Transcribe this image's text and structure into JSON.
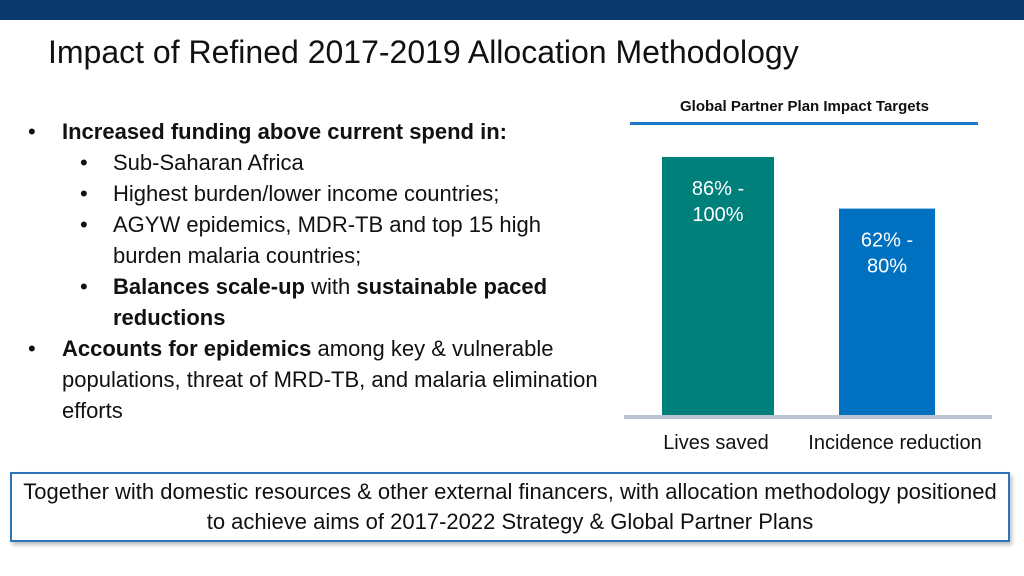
{
  "title": "Impact of Refined 2017-2019 Allocation Methodology",
  "bullets": {
    "item1_bold": "Increased funding above current spend in:",
    "sub1": "Sub-Saharan Africa",
    "sub2": "Highest burden/lower income countries;",
    "sub3": "AGYW epidemics, MDR-TB and top 15 high burden malaria countries;",
    "sub4_bold1": "Balances scale-up",
    "sub4_mid": " with ",
    "sub4_bold2": "sustainable paced reductions",
    "item2_bold": "Accounts for epidemics",
    "item2_rest": " among key & vulnerable populations, threat of MRD-TB, and malaria elimination efforts"
  },
  "chart_data": {
    "type": "bar",
    "title": "Global Partner Plan Impact Targets",
    "categories": [
      "Lives saved",
      "Incidence reduction"
    ],
    "values": [
      100,
      80
    ],
    "data_labels": [
      "86% -\n100%",
      "62% -\n80%"
    ],
    "colors": [
      "#00807a",
      "#0070c0"
    ],
    "ylim": [
      0,
      100
    ]
  },
  "footer": {
    "text": "Together with domestic resources & other external financers, with allocation methodology positioned to achieve aims of 2017-2022 Strategy & Global Partner Plans"
  }
}
